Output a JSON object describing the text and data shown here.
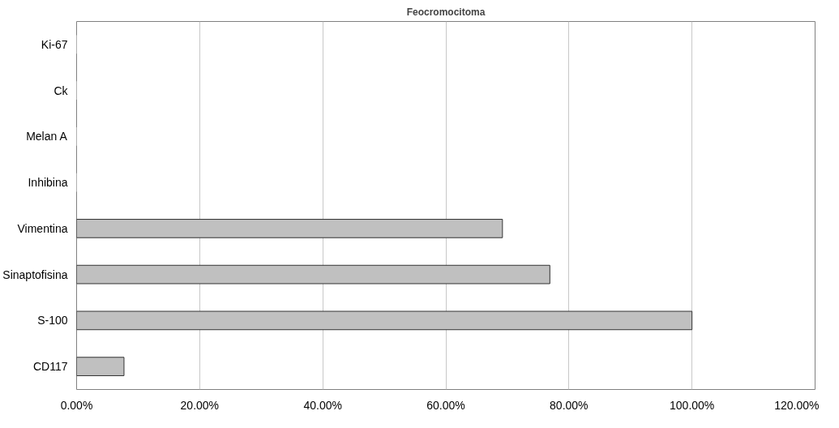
{
  "chart_data": {
    "type": "bar",
    "orientation": "horizontal",
    "title": "Feocromocitoma",
    "categories": [
      "Ki-67",
      "Ck",
      "Melan A",
      "Inhibina",
      "Vimentina",
      "Sinaptofisina",
      "S-100",
      "CD117"
    ],
    "values": [
      0,
      0,
      0,
      0,
      69.2,
      76.9,
      100,
      7.7
    ],
    "color": "#c0c0c0",
    "xlim": [
      0,
      120
    ],
    "xticks": [
      {
        "value": 0,
        "label": "0.00%"
      },
      {
        "value": 20,
        "label": "20.00%"
      },
      {
        "value": 40,
        "label": "40.00%"
      },
      {
        "value": 60,
        "label": "60.00%"
      },
      {
        "value": 80,
        "label": "80.00%"
      },
      {
        "value": 100,
        "label": "100.00%"
      },
      {
        "value": 120,
        "label": "120.00%"
      }
    ],
    "grid": "x"
  }
}
